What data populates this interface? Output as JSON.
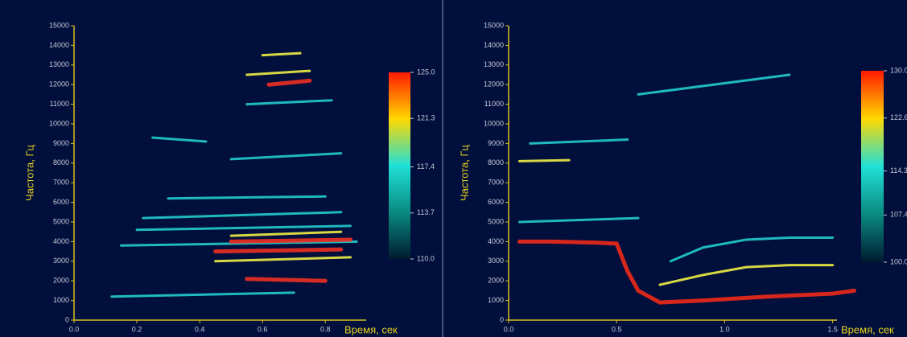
{
  "chart_data": [
    {
      "type": "spectrogram",
      "ylabel": "Частота, Гц",
      "xlabel": "Время, сек",
      "xlim": [
        0,
        0.93
      ],
      "ylim": [
        0,
        15000
      ],
      "xticks": [
        {
          "value": 0,
          "label": "0.0"
        },
        {
          "value": 0.2,
          "label": "0.2"
        },
        {
          "value": 0.4,
          "label": "0.4"
        },
        {
          "value": 0.6,
          "label": "0.6"
        },
        {
          "value": 0.8,
          "label": "0.8"
        }
      ],
      "yticks": [
        0,
        1000,
        2000,
        3000,
        4000,
        5000,
        6000,
        7000,
        8000,
        9000,
        10000,
        11000,
        12000,
        13000,
        14000,
        15000
      ],
      "clim": [
        110,
        125
      ],
      "colormap": [
        "#ff1a00",
        "#ffd800",
        "#20e0d8",
        "#0a8a80",
        "#001a30"
      ],
      "cticks": [
        {
          "value": 125,
          "label": "125.0"
        },
        {
          "value": 121.3,
          "label": "121.3"
        },
        {
          "value": 117.4,
          "label": "117.4"
        },
        {
          "value": 113.7,
          "label": "113.7"
        },
        {
          "value": 110,
          "label": "110.0"
        }
      ],
      "series": [
        {
          "color": "#22cccc",
          "x": [
            0.22,
            0.85,
            null,
            0.2,
            0.88,
            null,
            0.15,
            0.9,
            null,
            0.3,
            0.8,
            null,
            0.25,
            0.42,
            null,
            0.5,
            0.85,
            null,
            0.55,
            0.82,
            null,
            0.12,
            0.7
          ],
          "values": [
            5200,
            5500,
            null,
            4600,
            4800,
            null,
            3800,
            4000,
            null,
            6200,
            6300,
            null,
            9300,
            9100,
            null,
            8200,
            8500,
            null,
            11000,
            11200,
            null,
            1200,
            1400
          ]
        },
        {
          "color": "#eeee44",
          "x": [
            0.45,
            0.88,
            null,
            0.5,
            0.85,
            null,
            0.55,
            0.75,
            null,
            0.6,
            0.72
          ],
          "values": [
            3000,
            3200,
            null,
            4300,
            4500,
            null,
            12500,
            12700,
            null,
            13500,
            13600
          ]
        },
        {
          "color": "#ee3020",
          "x": [
            0.45,
            0.85,
            null,
            0.5,
            0.88,
            null,
            0.55,
            0.8,
            null,
            0.62,
            0.75
          ],
          "values": [
            3500,
            3600,
            null,
            4000,
            4100,
            null,
            2100,
            2000,
            null,
            12000,
            12200
          ]
        }
      ]
    },
    {
      "type": "spectrogram",
      "ylabel": "Частота, Гц",
      "xlabel": "Время, сек",
      "xlim": [
        0,
        1.52
      ],
      "ylim": [
        0,
        15000
      ],
      "xticks": [
        {
          "value": 0,
          "label": "0.0"
        },
        {
          "value": 0.5,
          "label": "0.5"
        },
        {
          "value": 1,
          "label": "1.0"
        },
        {
          "value": 1.5,
          "label": "1.5"
        }
      ],
      "yticks": [
        0,
        1000,
        2000,
        3000,
        4000,
        5000,
        6000,
        7000,
        8000,
        9000,
        10000,
        11000,
        12000,
        13000,
        14000,
        15000
      ],
      "clim": [
        100,
        130
      ],
      "colormap": [
        "#ff1a00",
        "#ffd800",
        "#20e0d8",
        "#0a8a80",
        "#001a30"
      ],
      "cticks": [
        {
          "value": 130,
          "label": "130.0"
        },
        {
          "value": 122.6,
          "label": "122.6"
        },
        {
          "value": 114.3,
          "label": "114.3"
        },
        {
          "value": 107.4,
          "label": "107.4"
        },
        {
          "value": 100,
          "label": "100.0"
        }
      ],
      "series": [
        {
          "color": "#22cccc",
          "x": [
            0.75,
            0.9,
            1.1,
            1.3,
            1.5,
            null,
            0.05,
            0.6,
            null,
            0.1,
            0.55,
            null,
            0.6,
            1.3
          ],
          "values": [
            3000,
            3700,
            4100,
            4200,
            4200,
            null,
            5000,
            5200,
            null,
            9000,
            9200,
            null,
            11500,
            12500
          ]
        },
        {
          "color": "#eeee44",
          "x": [
            0.7,
            0.9,
            1.1,
            1.3,
            1.5,
            null,
            0.05,
            0.28
          ],
          "values": [
            1800,
            2300,
            2700,
            2800,
            2800,
            null,
            8100,
            8150
          ]
        },
        {
          "color": "#ee2a18",
          "x": [
            0.05,
            0.2,
            0.4,
            0.5,
            0.55,
            0.6,
            0.7,
            0.9,
            1.2,
            1.5,
            1.6
          ],
          "values": [
            4000,
            4000,
            3950,
            3900,
            2500,
            1500,
            900,
            1000,
            1200,
            1350,
            1500
          ]
        }
      ]
    }
  ]
}
